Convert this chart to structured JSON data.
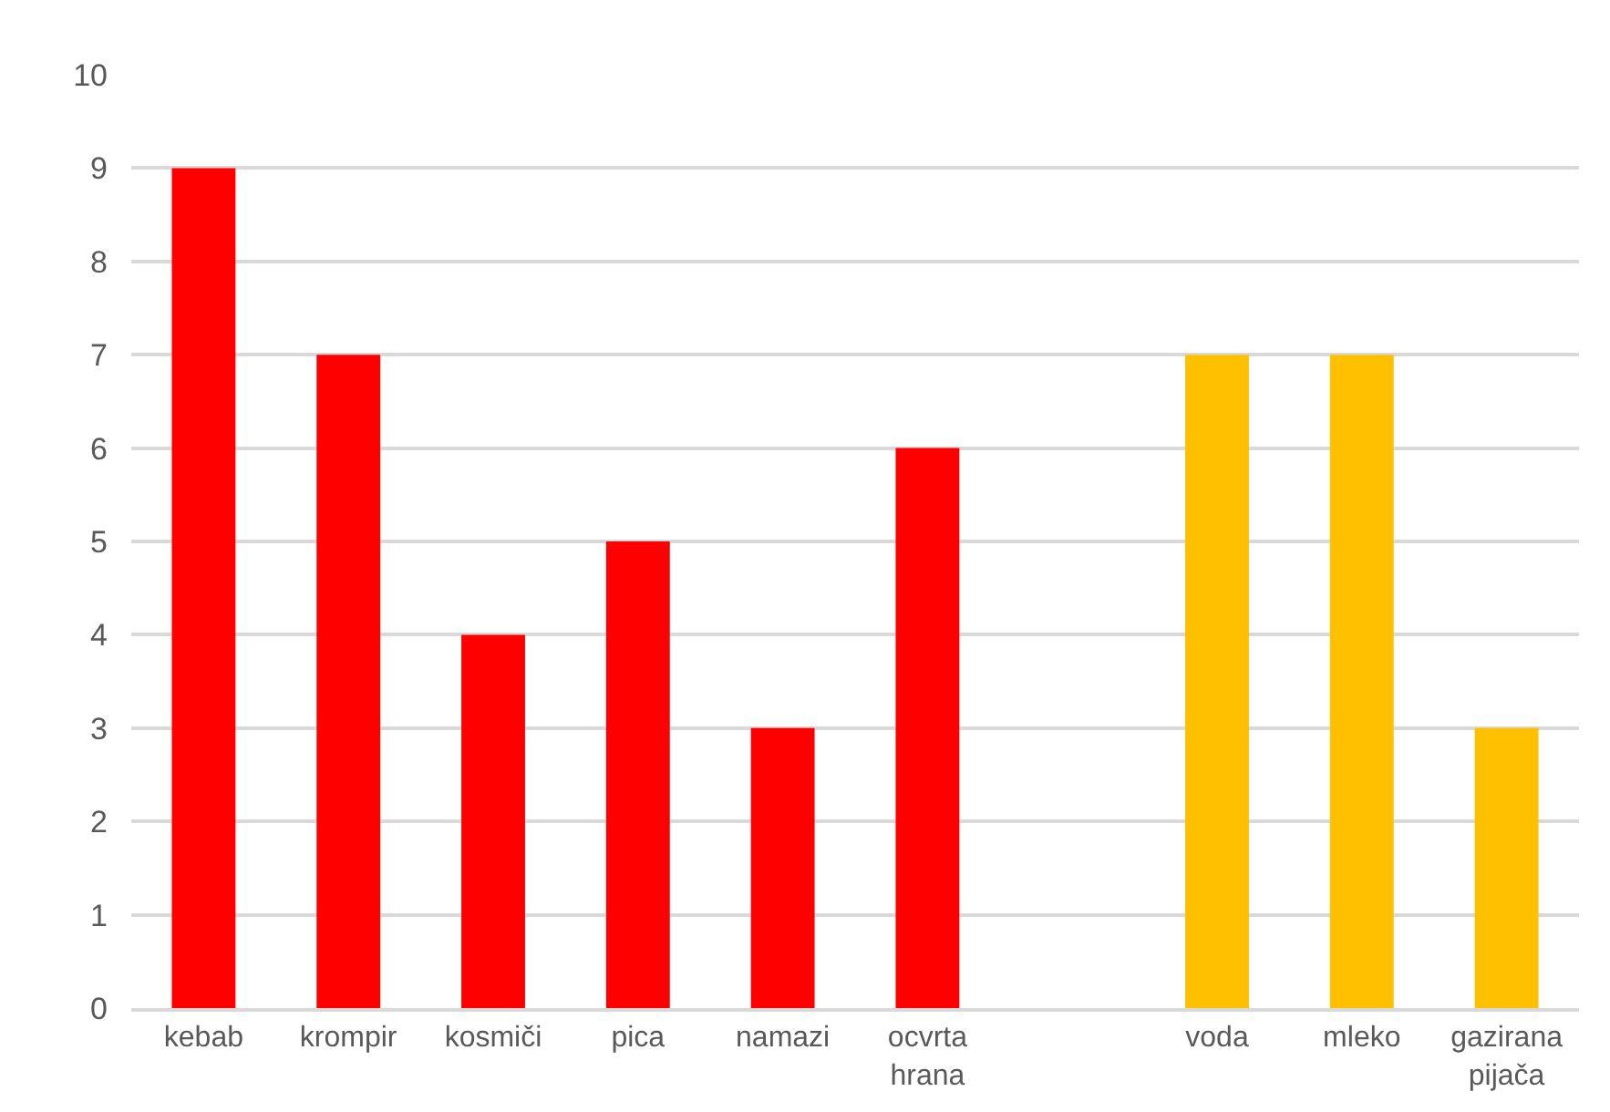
{
  "chart_data": {
    "type": "bar",
    "categories": [
      "kebab",
      "krompir",
      "kosmiči",
      "pica",
      "namazi",
      "ocvrta hrana",
      null,
      "voda",
      "mleko",
      "gazirana pijača"
    ],
    "values": [
      9,
      7,
      4,
      5,
      3,
      6,
      null,
      7,
      7,
      3
    ],
    "colors": [
      "#ff0000",
      "#ff0000",
      "#ff0000",
      "#ff0000",
      "#ff0000",
      "#ff0000",
      null,
      "#ffc000",
      "#ffc000",
      "#ffc000"
    ],
    "ylim": [
      0,
      10
    ],
    "yticks": [
      0,
      1,
      2,
      3,
      4,
      5,
      6,
      7,
      8,
      9,
      10
    ],
    "grid": "y"
  }
}
